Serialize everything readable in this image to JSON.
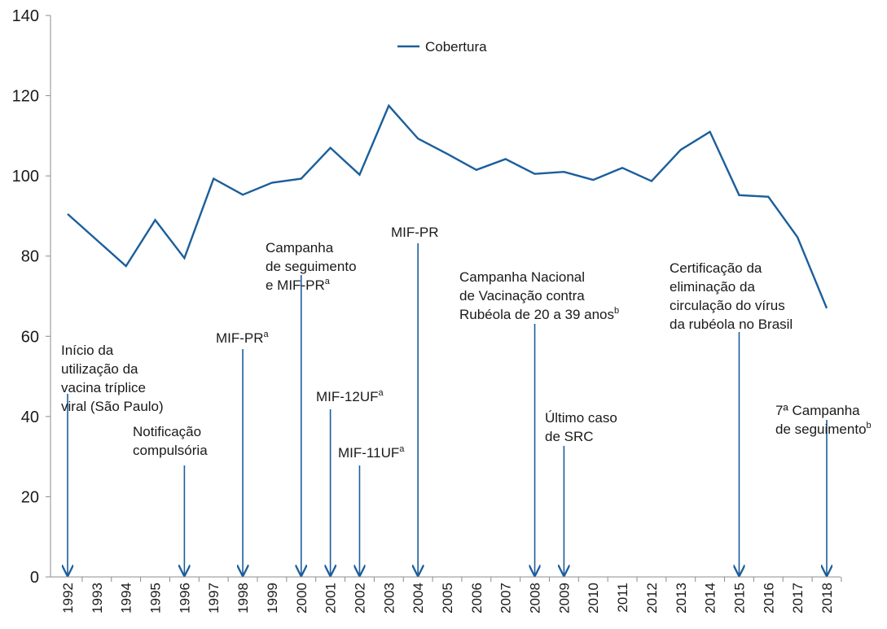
{
  "chart_data": {
    "type": "line",
    "categories": [
      "1992",
      "1993",
      "1994",
      "1995",
      "1996",
      "1997",
      "1998",
      "1999",
      "2000",
      "2001",
      "2002",
      "2003",
      "2004",
      "2005",
      "2006",
      "2007",
      "2008",
      "2009",
      "2010",
      "2011",
      "2012",
      "2013",
      "2014",
      "2015",
      "2016",
      "2017",
      "2018"
    ],
    "series": [
      {
        "name": "Cobertura",
        "color": "#1b5e9b",
        "values": [
          90.5,
          84,
          77.5,
          89,
          79.5,
          99.3,
          95.3,
          98.3,
          99.3,
          107,
          100.3,
          117.5,
          109.3,
          105.5,
          101.5,
          104.2,
          100.5,
          101,
          99,
          102,
          98.7,
          106.5,
          111,
          95.2,
          94.8,
          84.7,
          67
        ]
      }
    ],
    "ylim": [
      0,
      140
    ],
    "yticks": [
      0,
      20,
      40,
      60,
      80,
      100,
      120,
      140
    ],
    "annotations": [
      {
        "category": "1992",
        "lines": [
          "Início da",
          "utilização da",
          "vacina tríplice",
          "viral (São Paulo)"
        ]
      },
      {
        "category": "1996",
        "lines": [
          "Notificação",
          "compulsória"
        ]
      },
      {
        "category": "1998",
        "lines": [
          "MIF-PR"
        ],
        "sup": "a"
      },
      {
        "category": "2000",
        "lines": [
          "Campanha",
          "de seguimento",
          "e MIF-PR"
        ],
        "sup": "a"
      },
      {
        "category": "2001",
        "lines": [
          "MIF-12UF"
        ],
        "sup": "a"
      },
      {
        "category": "2002",
        "lines": [
          "MIF-11UF"
        ],
        "sup": "a"
      },
      {
        "category": "2004",
        "lines": [
          "MIF-PR"
        ]
      },
      {
        "category": "2008",
        "lines": [
          "Campanha Nacional",
          "de Vacinação contra",
          "Rubéola de 20 a 39 anos"
        ],
        "sup": "b"
      },
      {
        "category": "2009",
        "lines": [
          "Último caso",
          "de SRC"
        ]
      },
      {
        "category": "2015",
        "lines": [
          "Certificação da",
          "eliminação da",
          "circulação do vírus",
          "da rubéola no Brasil"
        ]
      },
      {
        "category": "2018",
        "lines": [
          "7ª Campanha",
          "de seguimento"
        ],
        "sup": "b"
      }
    ]
  }
}
